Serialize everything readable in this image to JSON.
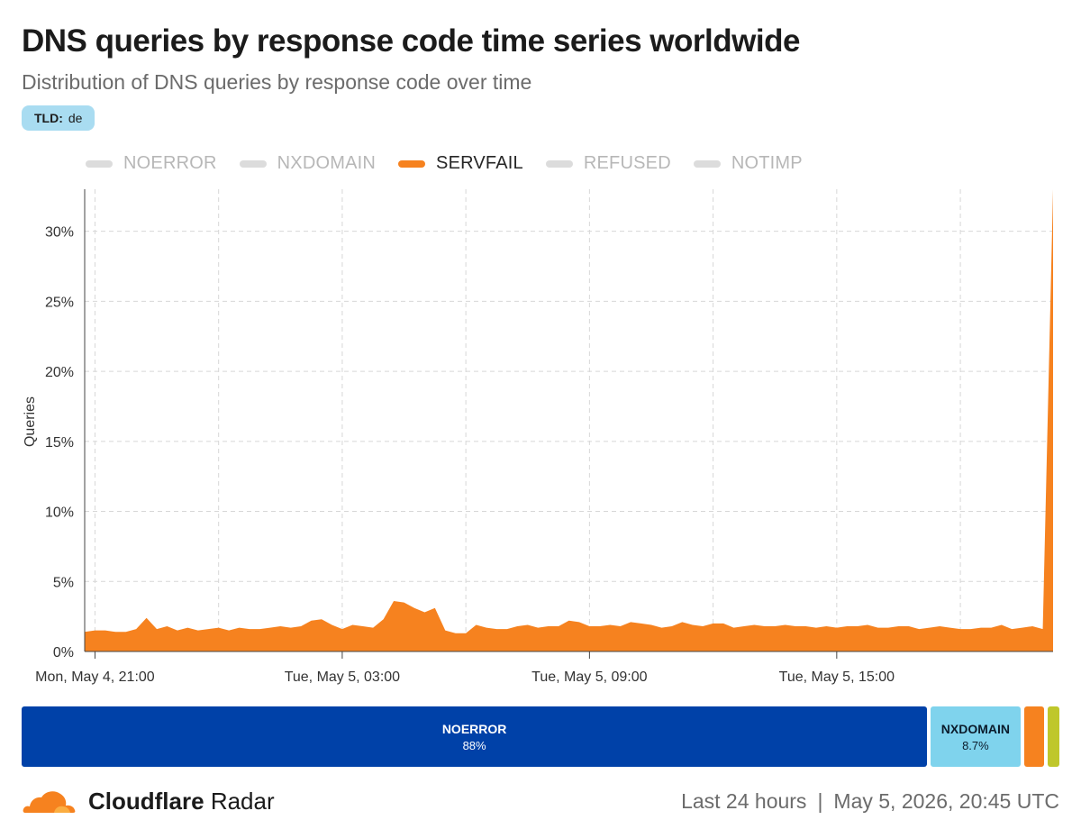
{
  "header": {
    "title": "DNS queries by response code time series worldwide",
    "subtitle": "Distribution of DNS queries by response code over time",
    "filter_key": "TLD:",
    "filter_value": "de"
  },
  "legend": [
    {
      "label": "NOERROR",
      "active": false
    },
    {
      "label": "NXDOMAIN",
      "active": false
    },
    {
      "label": "SERVFAIL",
      "active": true
    },
    {
      "label": "REFUSED",
      "active": false
    },
    {
      "label": "NOTIMP",
      "active": false
    }
  ],
  "colors": {
    "servfail": "#f6821f",
    "noerror": "#0041a8",
    "nxdomain": "#7fd3ed",
    "refused": "#bfc72b",
    "inactive_legend": "#dcdcdc",
    "grid": "#d7d7d7"
  },
  "chart_data": {
    "type": "area",
    "ylabel": "Queries",
    "xlabel": "",
    "ylim": [
      0,
      33
    ],
    "yticks": [
      0,
      5,
      10,
      15,
      20,
      25,
      30
    ],
    "ytick_labels": [
      "0%",
      "5%",
      "10%",
      "15%",
      "20%",
      "25%",
      "30%"
    ],
    "x_start": "Mon, May 4, 20:45",
    "x_end": "Tue, May 5, 20:30",
    "x_step_minutes": 15,
    "xtick_labels": [
      {
        "label": "Mon, May 4, 21:00",
        "index": 1
      },
      {
        "label": "Tue, May 5, 03:00",
        "index": 25
      },
      {
        "label": "Tue, May 5, 09:00",
        "index": 49
      },
      {
        "label": "Tue, May 5, 15:00",
        "index": 73
      }
    ],
    "series": [
      {
        "name": "SERVFAIL",
        "values": [
          1.4,
          1.5,
          1.5,
          1.4,
          1.4,
          1.6,
          2.4,
          1.6,
          1.8,
          1.5,
          1.7,
          1.5,
          1.6,
          1.7,
          1.5,
          1.7,
          1.6,
          1.6,
          1.7,
          1.8,
          1.7,
          1.8,
          2.2,
          2.3,
          1.9,
          1.6,
          1.9,
          1.8,
          1.7,
          2.3,
          3.6,
          3.5,
          3.1,
          2.8,
          3.1,
          1.5,
          1.3,
          1.3,
          1.9,
          1.7,
          1.6,
          1.6,
          1.8,
          1.9,
          1.7,
          1.8,
          1.8,
          2.2,
          2.1,
          1.8,
          1.8,
          1.9,
          1.8,
          2.1,
          2.0,
          1.9,
          1.7,
          1.8,
          2.1,
          1.9,
          1.8,
          2.0,
          2.0,
          1.7,
          1.8,
          1.9,
          1.8,
          1.8,
          1.9,
          1.8,
          1.8,
          1.7,
          1.8,
          1.7,
          1.8,
          1.8,
          1.9,
          1.7,
          1.7,
          1.8,
          1.8,
          1.6,
          1.7,
          1.8,
          1.7,
          1.6,
          1.6,
          1.7,
          1.7,
          1.9,
          1.6,
          1.7,
          1.8,
          1.6,
          33.0
        ]
      }
    ]
  },
  "summary_bar": [
    {
      "key": "noerror",
      "name": "NOERROR",
      "value": "88%",
      "share": 88.0
    },
    {
      "key": "nxdomain",
      "name": "NXDOMAIN",
      "value": "8.7%",
      "share": 8.7
    },
    {
      "key": "servfail",
      "name": "",
      "value": "",
      "share": 2.0
    },
    {
      "key": "refused",
      "name": "",
      "value": "",
      "share": 1.1
    }
  ],
  "footer": {
    "brand_bold": "Cloudflare",
    "brand_light": "Radar",
    "range": "Last 24 hours",
    "separator": "|",
    "timestamp": "May 5, 2026, 20:45 UTC"
  }
}
